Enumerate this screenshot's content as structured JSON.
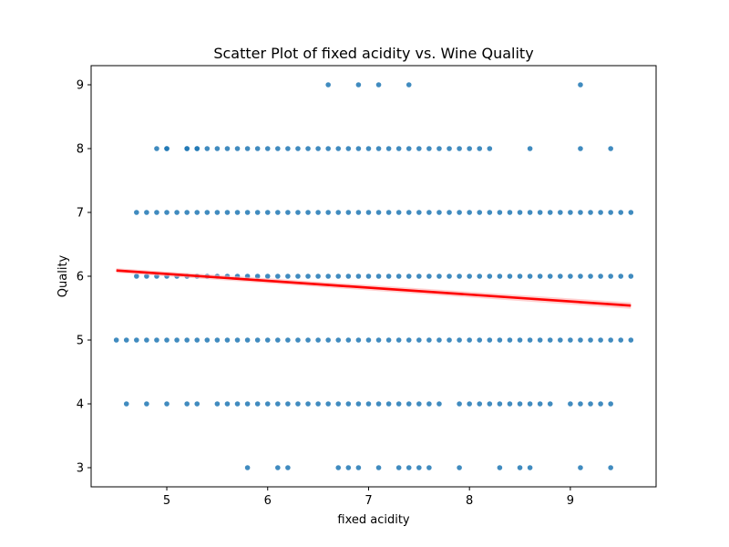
{
  "chart_data": {
    "type": "scatter",
    "title": "Scatter Plot of fixed acidity vs. Wine Quality",
    "xlabel": "fixed acidity",
    "ylabel": "Quality",
    "xlim": [
      4.25,
      9.85
    ],
    "ylim": [
      2.7,
      9.3
    ],
    "xticks": [
      5,
      6,
      7,
      8,
      9
    ],
    "yticks": [
      3,
      4,
      5,
      6,
      7,
      8,
      9
    ],
    "grid": false,
    "legend": "none",
    "colors": {
      "points": "#1f77b4",
      "regression": "#ff0000",
      "band": "#ffb3b3"
    },
    "series": [
      {
        "rows": [
          {
            "y": 9,
            "x": [
              6.6,
              6.9,
              7.1,
              7.4,
              9.1
            ]
          },
          {
            "y": 8,
            "x": [
              4.9,
              5.0,
              5.0,
              5.2,
              5.2,
              5.3,
              5.3,
              5.4,
              5.5,
              5.6,
              5.7,
              5.8,
              5.9,
              6.0,
              6.1,
              6.2,
              6.3,
              6.4,
              6.5,
              6.6,
              6.7,
              6.8,
              6.9,
              7.0,
              7.1,
              7.2,
              7.3,
              7.4,
              7.5,
              7.6,
              7.7,
              7.8,
              7.9,
              8.0,
              8.1,
              8.2,
              8.6,
              9.1,
              9.4
            ]
          },
          {
            "y": 7,
            "x": [
              4.7,
              4.8,
              4.9,
              5.0,
              5.1,
              5.2,
              5.3,
              5.4,
              5.5,
              5.6,
              5.7,
              5.8,
              5.9,
              6.0,
              6.1,
              6.2,
              6.3,
              6.4,
              6.5,
              6.6,
              6.7,
              6.8,
              6.9,
              7.0,
              7.1,
              7.2,
              7.3,
              7.4,
              7.5,
              7.6,
              7.7,
              7.8,
              7.9,
              8.0,
              8.1,
              8.2,
              8.3,
              8.4,
              8.5,
              8.6,
              8.7,
              8.8,
              8.9,
              9.0,
              9.1,
              9.2,
              9.3,
              9.4,
              9.5,
              9.6
            ]
          },
          {
            "y": 6,
            "x": [
              4.7,
              4.8,
              4.9,
              5.0,
              5.1,
              5.2,
              5.3,
              5.4,
              5.5,
              5.6,
              5.7,
              5.8,
              5.9,
              6.0,
              6.1,
              6.2,
              6.3,
              6.4,
              6.5,
              6.6,
              6.7,
              6.8,
              6.9,
              7.0,
              7.1,
              7.2,
              7.3,
              7.4,
              7.5,
              7.6,
              7.7,
              7.8,
              7.9,
              8.0,
              8.1,
              8.2,
              8.3,
              8.4,
              8.5,
              8.6,
              8.7,
              8.8,
              8.9,
              9.0,
              9.1,
              9.2,
              9.3,
              9.4,
              9.5,
              9.6
            ]
          },
          {
            "y": 5,
            "x": [
              4.5,
              4.6,
              4.7,
              4.8,
              4.9,
              5.0,
              5.1,
              5.2,
              5.3,
              5.4,
              5.5,
              5.6,
              5.7,
              5.8,
              5.9,
              6.0,
              6.1,
              6.2,
              6.3,
              6.4,
              6.5,
              6.6,
              6.7,
              6.8,
              6.9,
              7.0,
              7.1,
              7.2,
              7.3,
              7.4,
              7.5,
              7.6,
              7.7,
              7.8,
              7.9,
              8.0,
              8.1,
              8.2,
              8.3,
              8.4,
              8.5,
              8.6,
              8.7,
              8.8,
              8.9,
              9.0,
              9.1,
              9.2,
              9.3,
              9.4,
              9.5,
              9.6
            ]
          },
          {
            "y": 4,
            "x": [
              4.6,
              4.8,
              5.0,
              5.2,
              5.3,
              5.5,
              5.6,
              5.7,
              5.8,
              5.9,
              6.0,
              6.1,
              6.2,
              6.3,
              6.4,
              6.5,
              6.6,
              6.7,
              6.8,
              6.9,
              7.0,
              7.1,
              7.2,
              7.3,
              7.4,
              7.5,
              7.6,
              7.7,
              7.9,
              8.0,
              8.1,
              8.2,
              8.3,
              8.4,
              8.5,
              8.6,
              8.7,
              8.8,
              9.0,
              9.1,
              9.2,
              9.3,
              9.4
            ]
          },
          {
            "y": 3,
            "x": [
              5.8,
              6.1,
              6.2,
              6.7,
              6.8,
              6.9,
              7.1,
              7.3,
              7.4,
              7.5,
              7.6,
              7.9,
              8.3,
              8.5,
              8.6,
              9.1,
              9.4
            ]
          }
        ]
      }
    ],
    "regression": {
      "x": [
        4.5,
        9.6
      ],
      "y": [
        6.09,
        5.54
      ]
    }
  }
}
